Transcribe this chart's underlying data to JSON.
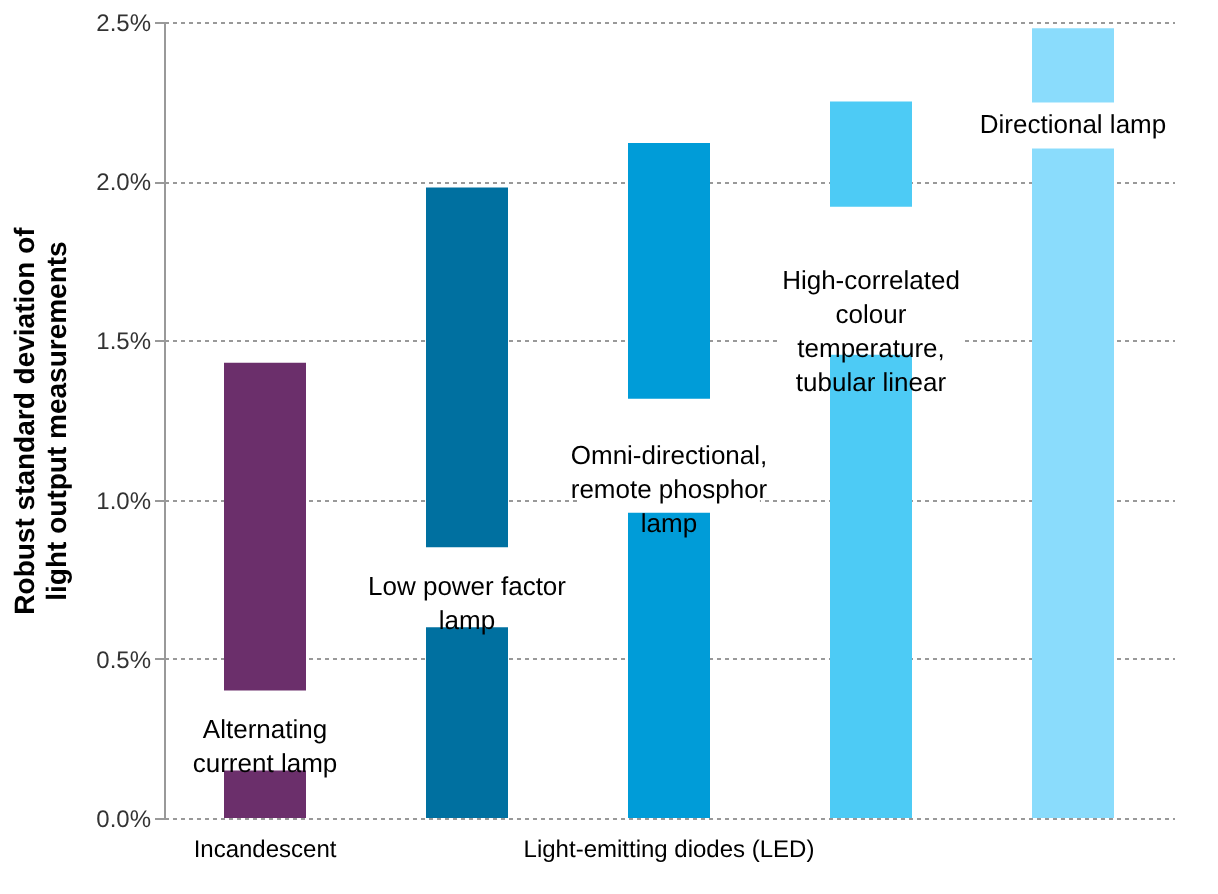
{
  "chart_data": {
    "type": "bar",
    "ylabel": [
      "Robust standard deviation of",
      "light output measurements"
    ],
    "categories": [
      "Incandescent",
      null,
      "Light-emitting diodes (LED)",
      null,
      null
    ],
    "values": [
      1.43,
      1.98,
      2.12,
      2.25,
      2.48
    ],
    "colors": [
      "#6b2f6b",
      "#0070a0",
      "#009cd8",
      "#4dcbf5",
      "#8adcfc"
    ],
    "ylim": [
      0,
      2.5
    ],
    "yticks": [
      {
        "value": 0,
        "label": "0.0%"
      },
      {
        "value": 0.5,
        "label": "0.5%"
      },
      {
        "value": 1,
        "label": "1.0%"
      },
      {
        "value": 1.5,
        "label": "1.5%"
      },
      {
        "value": 2,
        "label": "2.0%"
      },
      {
        "value": 2.5,
        "label": "2.5%"
      }
    ],
    "grid": "y",
    "annotations": [
      "Alternating\ncurrent lamp",
      "Low power factor\nlamp",
      "Omni-directional,\nremote phosphor\nlamp",
      "High-correlated\ncolour\ntemperature,\ntubular linear",
      "Directional lamp"
    ]
  }
}
